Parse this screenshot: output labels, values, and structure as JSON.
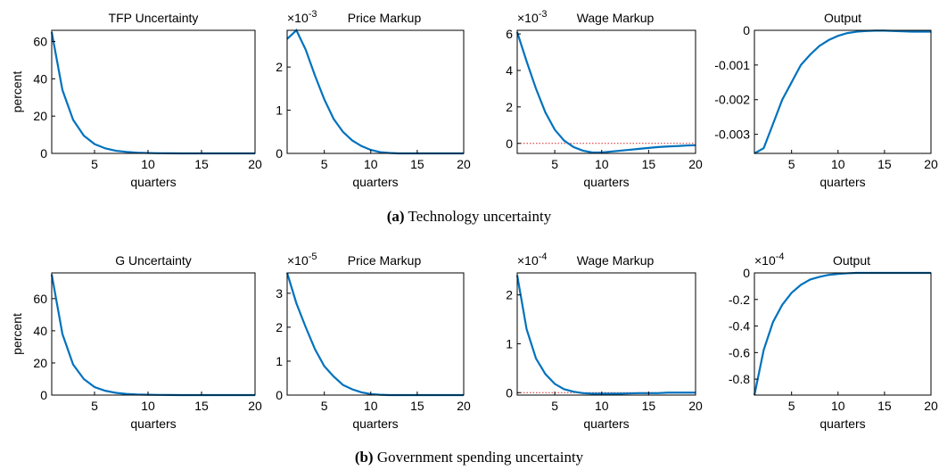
{
  "chart_data": [
    {
      "type": "line",
      "title": "TFP Uncertainty",
      "xlabel": "quarters",
      "ylabel": "percent",
      "x": [
        1,
        2,
        3,
        4,
        5,
        6,
        7,
        8,
        9,
        10,
        11,
        12,
        13,
        14,
        15,
        16,
        17,
        18,
        19,
        20
      ],
      "series": [
        {
          "color": "#0072bd",
          "values": [
            65,
            34,
            18,
            9.5,
            5,
            2.7,
            1.4,
            0.8,
            0.4,
            0.2,
            0.1,
            0.05,
            0,
            0,
            0,
            0,
            0,
            0,
            0,
            0
          ]
        }
      ],
      "xlim": [
        1,
        20
      ],
      "xticks": [
        5,
        10,
        15,
        20
      ],
      "ylim": [
        0,
        66
      ],
      "yticks": [
        0,
        20,
        40,
        60
      ],
      "reference_line": {
        "value": 0,
        "color": "#d62728"
      }
    },
    {
      "type": "line",
      "title": "Price Markup",
      "xlabel": "quarters",
      "y_multiplier": {
        "base": "×10",
        "exponent": "-3"
      },
      "x": [
        1,
        2,
        3,
        4,
        5,
        6,
        7,
        8,
        9,
        10,
        11,
        12,
        13,
        14,
        15,
        16,
        17,
        18,
        19,
        20
      ],
      "series": [
        {
          "color": "#0072bd",
          "values": [
            2.65,
            2.85,
            2.4,
            1.8,
            1.25,
            0.8,
            0.5,
            0.3,
            0.17,
            0.08,
            0.03,
            0.01,
            0,
            0,
            0,
            0,
            0,
            0,
            0,
            0
          ]
        }
      ],
      "xlim": [
        1,
        20
      ],
      "xticks": [
        5,
        10,
        15,
        20
      ],
      "ylim": [
        0,
        2.85
      ],
      "yticks": [
        0,
        1,
        2
      ],
      "reference_line": {
        "value": 0,
        "color": "#d62728"
      }
    },
    {
      "type": "line",
      "title": "Wage Markup",
      "xlabel": "quarters",
      "y_multiplier": {
        "base": "×10",
        "exponent": "-3"
      },
      "x": [
        1,
        2,
        3,
        4,
        5,
        6,
        7,
        8,
        9,
        10,
        11,
        12,
        13,
        14,
        15,
        16,
        17,
        18,
        19,
        20
      ],
      "series": [
        {
          "color": "#0072bd",
          "values": [
            6.1,
            4.5,
            3,
            1.7,
            0.75,
            0.15,
            -0.2,
            -0.4,
            -0.5,
            -0.5,
            -0.45,
            -0.4,
            -0.35,
            -0.3,
            -0.25,
            -0.2,
            -0.17,
            -0.15,
            -0.12,
            -0.1
          ]
        }
      ],
      "xlim": [
        1,
        20
      ],
      "xticks": [
        5,
        10,
        15,
        20
      ],
      "ylim": [
        -0.55,
        6.2
      ],
      "yticks": [
        0,
        2,
        4,
        6
      ],
      "reference_line": {
        "value": 0,
        "color": "#d62728"
      }
    },
    {
      "type": "line",
      "title": "Output",
      "xlabel": "quarters",
      "x": [
        1,
        2,
        3,
        4,
        5,
        6,
        7,
        8,
        9,
        10,
        11,
        12,
        13,
        14,
        15,
        16,
        17,
        18,
        19,
        20
      ],
      "series": [
        {
          "color": "#0072bd",
          "values": [
            -0.00355,
            -0.0034,
            -0.0027,
            -0.002,
            -0.0015,
            -0.001,
            -0.0007,
            -0.00045,
            -0.00028,
            -0.00016,
            -8e-05,
            -4e-05,
            -2e-05,
            -1e-05,
            -1e-05,
            -2e-05,
            -3e-05,
            -4e-05,
            -4e-05,
            -4e-05
          ]
        }
      ],
      "xlim": [
        1,
        20
      ],
      "xticks": [
        5,
        10,
        15,
        20
      ],
      "ylim": [
        -0.00355,
        0
      ],
      "yticks": [
        -0.003,
        -0.002,
        -0.001,
        0
      ],
      "reference_line": {
        "value": 0,
        "color": "#d62728"
      }
    },
    {
      "type": "line",
      "title": "G Uncertainty",
      "xlabel": "quarters",
      "ylabel": "percent",
      "x": [
        1,
        2,
        3,
        4,
        5,
        6,
        7,
        8,
        9,
        10,
        11,
        12,
        13,
        14,
        15,
        16,
        17,
        18,
        19,
        20
      ],
      "series": [
        {
          "color": "#0072bd",
          "values": [
            75,
            38,
            19,
            10,
            5,
            2.7,
            1.4,
            0.7,
            0.35,
            0.2,
            0.1,
            0.05,
            0,
            0,
            0,
            0,
            0,
            0,
            0,
            0
          ]
        }
      ],
      "xlim": [
        1,
        20
      ],
      "xticks": [
        5,
        10,
        15,
        20
      ],
      "ylim": [
        0,
        76
      ],
      "yticks": [
        0,
        20,
        40,
        60
      ],
      "reference_line": {
        "value": 0,
        "color": "#d62728"
      }
    },
    {
      "type": "line",
      "title": "Price Markup",
      "xlabel": "quarters",
      "y_multiplier": {
        "base": "×10",
        "exponent": "-5"
      },
      "x": [
        1,
        2,
        3,
        4,
        5,
        6,
        7,
        8,
        9,
        10,
        11,
        12,
        13,
        14,
        15,
        16,
        17,
        18,
        19,
        20
      ],
      "series": [
        {
          "color": "#0072bd",
          "values": [
            3.6,
            2.7,
            2,
            1.35,
            0.85,
            0.55,
            0.3,
            0.17,
            0.08,
            0.03,
            0.01,
            0,
            0,
            0,
            0,
            0,
            0,
            0,
            0,
            0
          ]
        }
      ],
      "xlim": [
        1,
        20
      ],
      "xticks": [
        5,
        10,
        15,
        20
      ],
      "ylim": [
        0,
        3.6
      ],
      "yticks": [
        0,
        1,
        2,
        3
      ],
      "reference_line": {
        "value": 0,
        "color": "#d62728"
      }
    },
    {
      "type": "line",
      "title": "Wage Markup",
      "xlabel": "quarters",
      "y_multiplier": {
        "base": "×10",
        "exponent": "-4"
      },
      "x": [
        1,
        2,
        3,
        4,
        5,
        6,
        7,
        8,
        9,
        10,
        11,
        12,
        13,
        14,
        15,
        16,
        17,
        18,
        19,
        20
      ],
      "series": [
        {
          "color": "#0072bd",
          "values": [
            2.4,
            1.3,
            0.7,
            0.38,
            0.18,
            0.07,
            0.02,
            -0.01,
            -0.02,
            -0.02,
            -0.02,
            -0.02,
            -0.015,
            -0.01,
            -0.01,
            -0.01,
            0,
            0,
            0,
            0
          ]
        }
      ],
      "xlim": [
        1,
        20
      ],
      "xticks": [
        5,
        10,
        15,
        20
      ],
      "ylim": [
        -0.05,
        2.45
      ],
      "yticks": [
        0,
        1,
        2
      ],
      "reference_line": {
        "value": 0,
        "color": "#d62728"
      }
    },
    {
      "type": "line",
      "title": "Output",
      "xlabel": "quarters",
      "y_multiplier": {
        "base": "×10",
        "exponent": "-4"
      },
      "x": [
        1,
        2,
        3,
        4,
        5,
        6,
        7,
        8,
        9,
        10,
        11,
        12,
        13,
        14,
        15,
        16,
        17,
        18,
        19,
        20
      ],
      "series": [
        {
          "color": "#0072bd",
          "values": [
            -0.92,
            -0.58,
            -0.37,
            -0.24,
            -0.15,
            -0.09,
            -0.05,
            -0.03,
            -0.015,
            -0.008,
            -0.003,
            0,
            0,
            0,
            0,
            0,
            0,
            0,
            0,
            0
          ]
        }
      ],
      "xlim": [
        1,
        20
      ],
      "xticks": [
        5,
        10,
        15,
        20
      ],
      "ylim": [
        -0.92,
        0
      ],
      "yticks": [
        -0.8,
        -0.6,
        -0.4,
        -0.2,
        0
      ],
      "reference_line": {
        "value": 0,
        "color": "#d62728"
      }
    }
  ],
  "captions": [
    {
      "label": "(a)",
      "text": "Technology uncertainty"
    },
    {
      "label": "(b)",
      "text": "Government spending uncertainty"
    }
  ]
}
